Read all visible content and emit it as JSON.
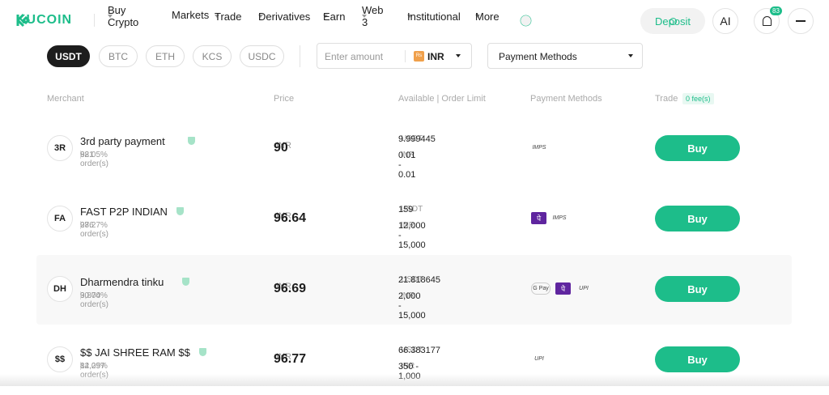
{
  "nav": {
    "logo": "KUCOIN",
    "items": [
      "Buy Crypto",
      "Markets",
      "Trade",
      "Derivatives",
      "Earn",
      "Web 3",
      "Institutional",
      "More"
    ],
    "deposit": "Deposit",
    "ai": "AI",
    "badge": "83"
  },
  "filters": {
    "coins": [
      "USDT",
      "BTC",
      "ETH",
      "KCS",
      "USDC"
    ],
    "amount_placeholder": "Enter amount",
    "currency_icon": "Rs",
    "currency": "INR",
    "payment": "Payment Methods"
  },
  "table": {
    "headers": [
      "Merchant",
      "Price",
      "Available | Order Limit",
      "Payment Methods",
      "Trade"
    ],
    "fee": "0 fee(s)",
    "rows": [
      {
        "avatar": "3R",
        "name": "3rd party payment",
        "orders": "881 order(s)",
        "rate": "92.05%",
        "price": "90",
        "price_unit": "INR",
        "available": "9.999445",
        "available_unit": "USDT",
        "limit": "0.01 - 0.01",
        "limit_unit": "INR",
        "payments": [
          "IMPS"
        ],
        "action": "Buy"
      },
      {
        "avatar": "FA",
        "name": "FAST P2P INDIAN",
        "orders": "286 order(s)",
        "rate": "97.27%",
        "price": "96.64",
        "price_unit": "INR",
        "available": "159",
        "available_unit": "USDT",
        "limit": "12,000 - 15,000",
        "limit_unit": "INR",
        "payments": [
          "पे",
          "IMPS"
        ],
        "action": "Buy"
      },
      {
        "avatar": "DH",
        "name": "Dharmendra tinku",
        "orders": "3,804 order(s)",
        "rate": "90.70%",
        "price": "96.69",
        "price_unit": "INR",
        "available": "21.818645",
        "available_unit": "USDT",
        "limit": "2,000 - 15,000",
        "limit_unit": "INR",
        "payments": [
          "G Pay",
          "पे",
          "UPI"
        ],
        "action": "Buy"
      },
      {
        "avatar": "$$",
        "name": "$$ JAI SHREE RAM $$",
        "orders": "12,097 order(s)",
        "rate": "84.25%",
        "price": "96.77",
        "price_unit": "INR",
        "available": "66.383177",
        "available_unit": "USDT",
        "limit": "350 - 1,000",
        "limit_unit": "INR",
        "payments": [
          "UPI"
        ],
        "action": "Buy"
      }
    ]
  }
}
